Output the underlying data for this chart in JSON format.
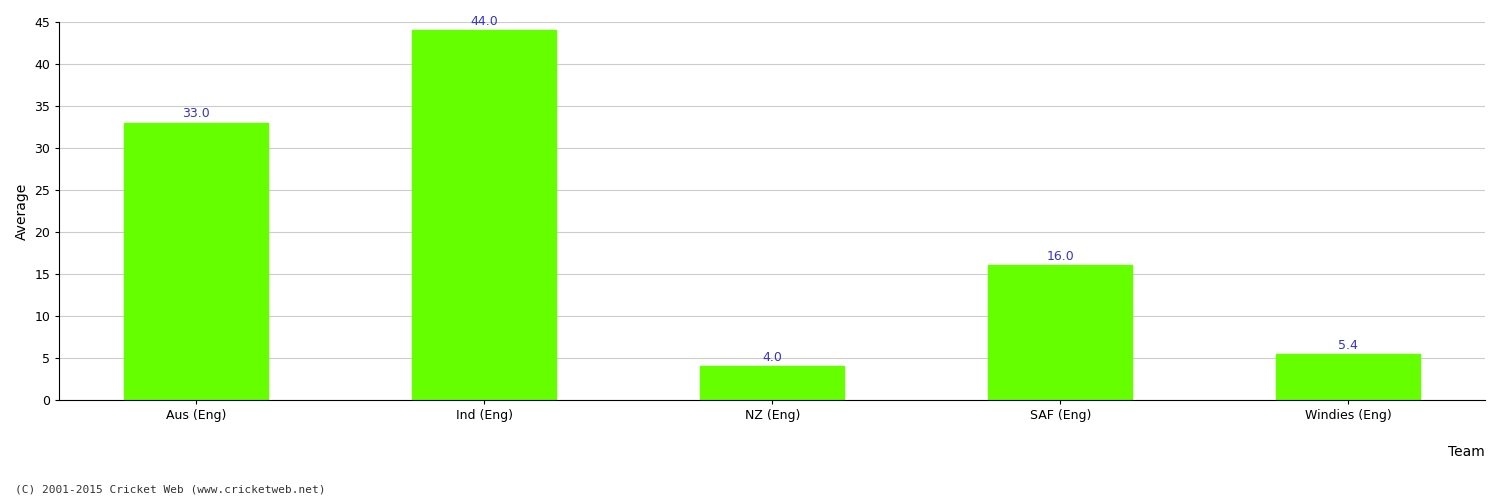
{
  "categories": [
    "Aus (Eng)",
    "Ind (Eng)",
    "NZ (Eng)",
    "SAF (Eng)",
    "Windies (Eng)"
  ],
  "values": [
    33.0,
    44.0,
    4.0,
    16.0,
    5.4
  ],
  "bar_color": "#66ff00",
  "bar_edge_color": "#66ff00",
  "title": "",
  "xlabel": "Team",
  "ylabel": "Average",
  "ylim": [
    0,
    45
  ],
  "yticks": [
    0,
    5,
    10,
    15,
    20,
    25,
    30,
    35,
    40,
    45
  ],
  "annotation_color": "#3333cc",
  "annotation_fontsize": 9,
  "axis_label_fontsize": 10,
  "tick_fontsize": 9,
  "grid_color": "#cccccc",
  "background_color": "#ffffff",
  "footer_text": "(C) 2001-2015 Cricket Web (www.cricketweb.net)",
  "footer_fontsize": 8,
  "footer_color": "#333333"
}
